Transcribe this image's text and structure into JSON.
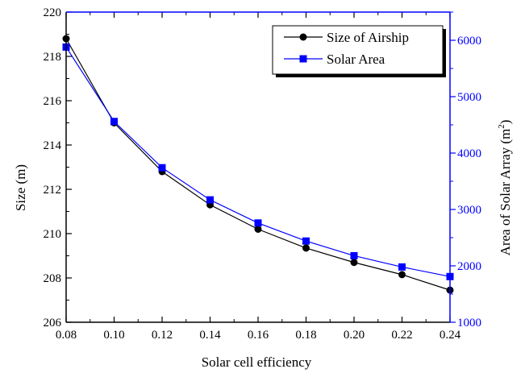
{
  "chart_data": {
    "type": "line",
    "xlabel": "Solar cell efficiency",
    "ylabel_left": "Size (m)",
    "ylabel_right_main": "Area of Solar Array (m",
    "ylabel_right_sup": "2",
    "ylabel_right_close": ")",
    "xlim": [
      0.08,
      0.24
    ],
    "ylim_left": [
      206,
      220
    ],
    "ylim_right": [
      1000,
      6500
    ],
    "x_ticks": [
      "0.08",
      "0.10",
      "0.12",
      "0.14",
      "0.16",
      "0.18",
      "0.20",
      "0.22",
      "0.24"
    ],
    "y_left_ticks": [
      "206",
      "208",
      "210",
      "212",
      "214",
      "216",
      "218",
      "220"
    ],
    "y_right_ticks": [
      "1000",
      "2000",
      "3000",
      "4000",
      "5000",
      "6000"
    ],
    "x": [
      0.08,
      0.1,
      0.12,
      0.14,
      0.16,
      0.18,
      0.2,
      0.22,
      0.24
    ],
    "series": [
      {
        "name": "Size of Airship",
        "axis": "left",
        "marker": "circle",
        "color": "#000000",
        "values": [
          218.8,
          215.0,
          212.8,
          211.3,
          210.2,
          209.35,
          208.7,
          208.15,
          207.45
        ]
      },
      {
        "name": "Solar Area",
        "axis": "right",
        "marker": "square",
        "color": "#0000ff",
        "values": [
          5880,
          4560,
          3740,
          3170,
          2760,
          2440,
          2180,
          1980,
          1810
        ]
      }
    ],
    "legend_position": "top-right",
    "right_axis_color": "#0000ff",
    "grid": false
  }
}
